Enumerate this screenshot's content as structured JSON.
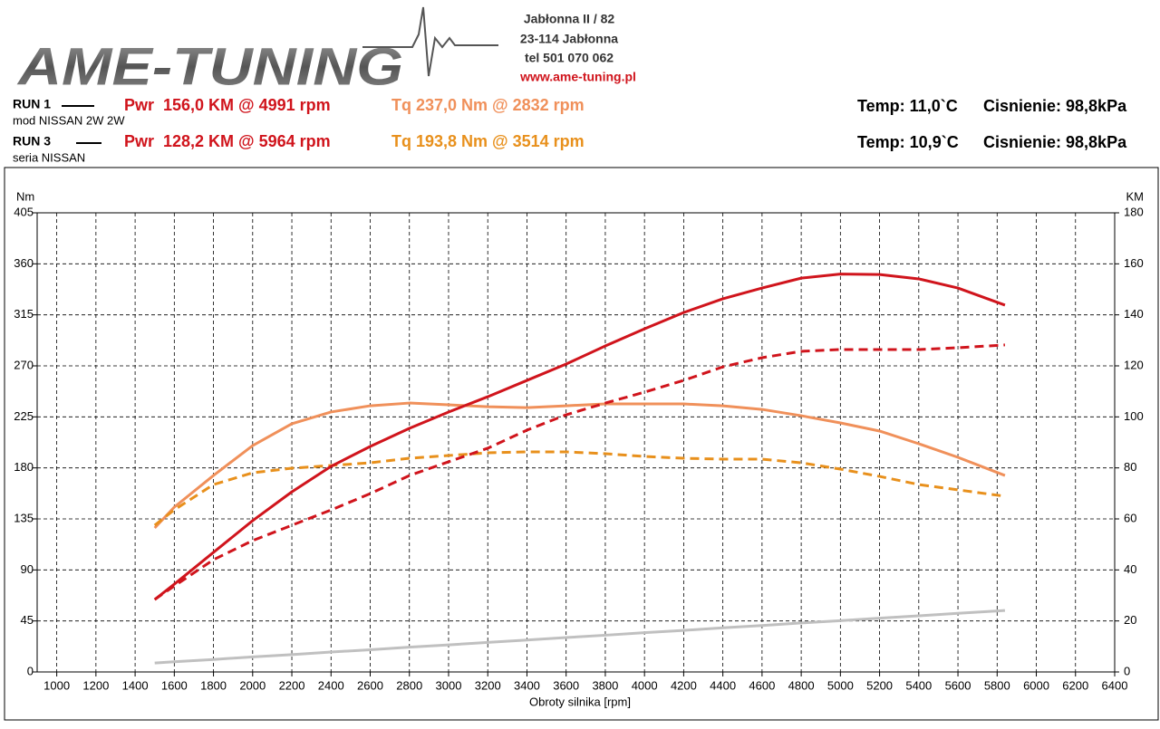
{
  "header": {
    "logo": "AME-TUNING",
    "address": [
      "Jabłonna II / 82",
      "23-114 Jabłonna",
      "tel 501 070 062"
    ],
    "website": "www.ame-tuning.pl"
  },
  "runs": [
    {
      "run": "RUN 1",
      "desc": "mod NISSAN 2W 2W",
      "pwr": "Pwr  156,0 KM @ 4991 rpm",
      "tq": "Tq 237,0 Nm @ 2832 rpm",
      "temp": "Temp: 11,0`C",
      "pressure": "Cisnienie: 98,8kPa"
    },
    {
      "run": "RUN 3",
      "desc": "seria NISSAN",
      "pwr": "Pwr  128,2 KM @ 5964 rpm",
      "tq": "Tq 193,8 Nm @ 3514 rpm",
      "temp": "Temp: 10,9`C",
      "pressure": "Cisnienie: 98,8kPa"
    }
  ],
  "chart_data": {
    "type": "line",
    "x_label": "Obroty silnika [rpm]",
    "y_label": "Nm",
    "y2_label": "KM",
    "grid": true,
    "x": [
      1500,
      1600,
      1800,
      2000,
      2200,
      2400,
      2600,
      2800,
      3000,
      3200,
      3400,
      3600,
      3800,
      4000,
      4200,
      4400,
      4600,
      4800,
      5000,
      5200,
      5400,
      5600,
      5840
    ],
    "xlim": [
      900,
      6400
    ],
    "xticks": [
      1000,
      1200,
      1400,
      1600,
      1800,
      2000,
      2200,
      2400,
      2600,
      2800,
      3000,
      3200,
      3400,
      3600,
      3800,
      4000,
      4200,
      4400,
      4600,
      4800,
      5000,
      5200,
      5400,
      5600,
      5800,
      6000,
      6200,
      6400
    ],
    "ylim": [
      0,
      405
    ],
    "yticks": [
      0,
      45,
      90,
      135,
      180,
      225,
      270,
      315,
      360,
      405
    ],
    "y2lim": [
      0,
      180
    ],
    "y2ticks": [
      0,
      20,
      40,
      60,
      80,
      100,
      120,
      140,
      160,
      180
    ],
    "series": [
      {
        "color": "#c0c0c0",
        "style": "solid",
        "axis": "y2",
        "values": [
          3.5,
          4.0,
          4.9,
          5.9,
          6.8,
          7.8,
          8.7,
          9.7,
          10.6,
          11.6,
          12.5,
          13.5,
          14.4,
          15.4,
          16.3,
          17.3,
          18.2,
          19.2,
          20.1,
          21.1,
          22.0,
          23.0,
          24.1
        ]
      },
      {
        "color": "#f0905a",
        "style": "solid",
        "values": [
          127,
          145.4,
          173.3,
          199.7,
          218.9,
          229.3,
          234.8,
          237.2,
          235.6,
          234,
          233.2,
          234.8,
          236.4,
          236.4,
          236.4,
          234.8,
          231.6,
          226,
          219.7,
          212.5,
          201.3,
          189.3,
          173.3
        ]
      },
      {
        "color": "#e8901c",
        "style": "dashed",
        "values": [
          129.4,
          143,
          165.3,
          175.7,
          179.7,
          182.1,
          184.5,
          188.5,
          190.9,
          193.3,
          194.1,
          194.1,
          192.5,
          190.1,
          188.5,
          187.7,
          187.7,
          184.5,
          178.9,
          172.5,
          165.3,
          160.6,
          155
        ]
      },
      {
        "color": "#d0141c",
        "style": "solid",
        "axis": "y2",
        "values": [
          28.4,
          34.4,
          46.9,
          59.3,
          70.6,
          80.6,
          88.4,
          95.5,
          101.9,
          107.9,
          114.3,
          120.7,
          127.8,
          134.5,
          140.9,
          146.3,
          150.5,
          154.4,
          156.0,
          155.8,
          154.1,
          150.5,
          143.8
        ]
      },
      {
        "color": "#d0141c",
        "style": "dashed",
        "axis": "y2",
        "values": [
          28.4,
          33.7,
          44,
          51.5,
          57.5,
          63.5,
          69.9,
          77,
          82.4,
          87.7,
          94.8,
          100.8,
          105.4,
          109.7,
          114.3,
          119.6,
          123.2,
          125.7,
          126.4,
          126.4,
          126.4,
          127.1,
          128.2
        ]
      }
    ]
  }
}
